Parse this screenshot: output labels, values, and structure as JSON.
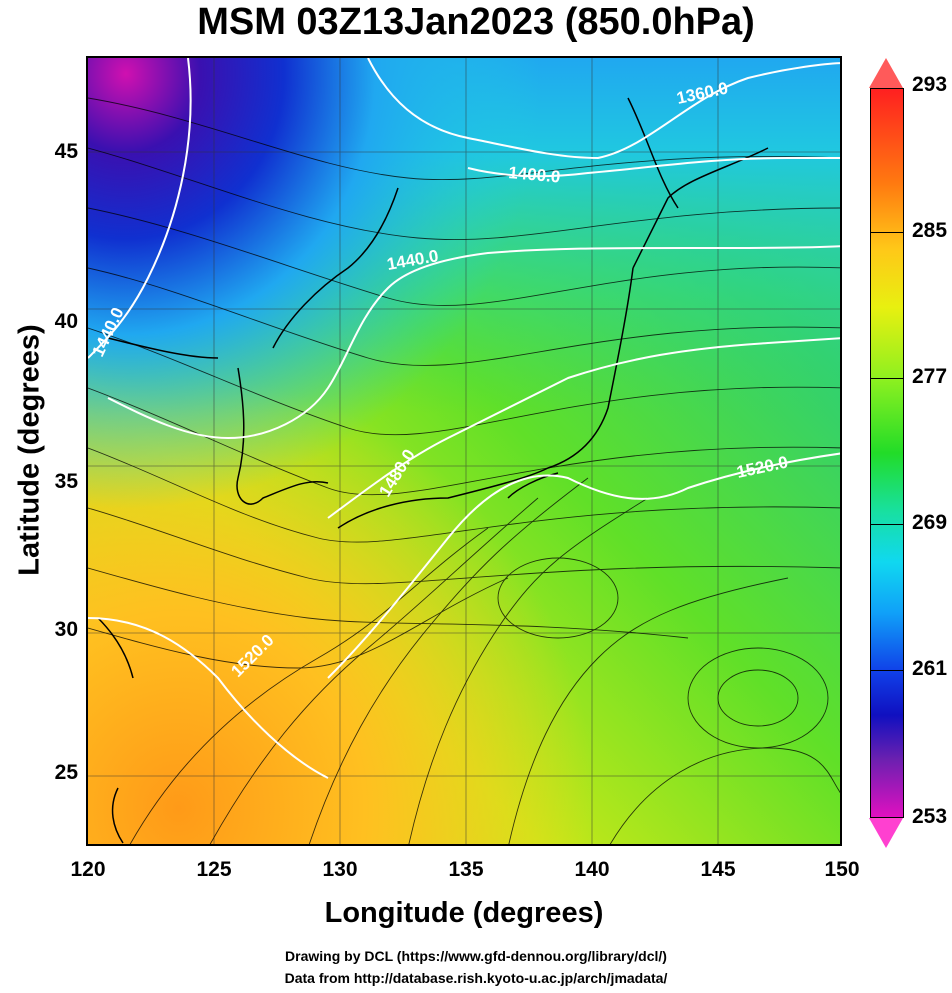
{
  "title": "MSM 03Z13Jan2023 (850.0hPa)",
  "axes": {
    "xlabel": "Longitude (degrees)",
    "ylabel": "Latitude  (degrees)",
    "xlim": [
      120,
      150
    ],
    "ylim": [
      22.4,
      47.6
    ],
    "xticks": [
      "120",
      "125",
      "130",
      "135",
      "140",
      "145",
      "150"
    ],
    "yticks": [
      "25",
      "30",
      "35",
      "40",
      "45"
    ]
  },
  "colorbar": {
    "min": 253,
    "max": 293,
    "ticks": [
      "293",
      "285",
      "277",
      "269",
      "261",
      "253"
    ]
  },
  "contours": [
    {
      "label": "1360.0"
    },
    {
      "label": "1400.0"
    },
    {
      "label": "1440.0"
    },
    {
      "label": "1480.0"
    },
    {
      "label": "1520.0"
    }
  ],
  "credits": {
    "line1": "Drawing by DCL (https://www.gfd-dennou.org/library/dcl/)",
    "line2": "Data from http://database.rish.kyoto-u.ac.jp/arch/jmadata/"
  },
  "colors": {
    "contour": "#ffffff",
    "coast": "#000000",
    "streamline": "#000000"
  }
}
